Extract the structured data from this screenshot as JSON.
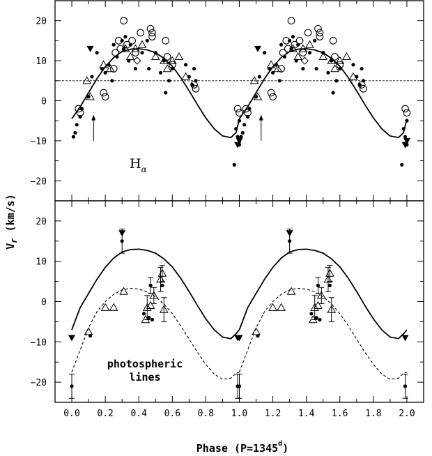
{
  "chart_data": [
    {
      "type": "scatter",
      "panel": "top",
      "annotation_main": "H",
      "annotation_sub": "α",
      "xlim": [
        -0.1,
        2.1
      ],
      "ylim": [
        -25,
        25
      ],
      "y_ticks": [
        "20",
        "10",
        "0",
        "−10",
        "−20"
      ],
      "y_tick_values": [
        20,
        10,
        0,
        -10,
        -20
      ],
      "reference_line_y": 5,
      "arrows_x": [
        0.13,
        1.13
      ],
      "curve": {
        "style": "solid",
        "x": [
          0.0,
          0.05,
          0.1,
          0.15,
          0.2,
          0.25,
          0.3,
          0.35,
          0.4,
          0.45,
          0.5,
          0.55,
          0.6,
          0.65,
          0.7,
          0.75,
          0.8,
          0.85,
          0.9,
          0.95,
          0.98,
          1.0
        ],
        "y": [
          -4.5,
          -1.5,
          2.0,
          5.5,
          8.5,
          10.8,
          12.3,
          12.9,
          13.0,
          12.7,
          12.0,
          10.6,
          8.6,
          5.8,
          2.5,
          -1.0,
          -4.3,
          -7.0,
          -8.8,
          -9.2,
          -8.0,
          -4.5
        ]
      },
      "series": [
        {
          "name": "",
          "marker": "dot",
          "x": [
            0.01,
            0.02,
            0.03,
            0.05,
            0.06,
            0.1,
            0.12,
            0.15,
            0.18,
            0.2,
            0.22,
            0.24,
            0.25,
            0.27,
            0.3,
            0.31,
            0.32,
            0.34,
            0.35,
            0.38,
            0.42,
            0.45,
            0.46,
            0.5,
            0.53,
            0.55,
            0.56,
            0.58,
            0.6,
            0.68,
            0.7,
            0.72,
            0.73,
            0.74,
            0.98,
            0.99,
            1.0,
            1.0,
            0.97
          ],
          "y": [
            -9,
            -8,
            -6,
            -4,
            -2,
            1,
            6,
            12,
            8,
            7,
            9,
            5,
            14,
            11,
            15,
            13,
            16,
            10,
            14,
            8,
            12,
            15,
            8,
            12,
            7,
            10,
            2,
            5,
            8,
            9,
            6,
            4,
            8,
            5,
            -7,
            -9,
            -5,
            -11,
            -16
          ]
        },
        {
          "name": "",
          "marker": "open-circle",
          "x": [
            0.04,
            0.05,
            0.19,
            0.2,
            0.25,
            0.26,
            0.28,
            0.29,
            0.31,
            0.33,
            0.36,
            0.38,
            0.41,
            0.47,
            0.48,
            0.48,
            0.56,
            0.57,
            0.6,
            0.74,
            0.73,
            0.99,
            1.0
          ],
          "y": [
            -2,
            -3,
            2,
            1,
            8,
            12,
            15,
            13,
            20,
            14,
            15,
            12,
            17,
            18,
            17,
            16,
            15,
            11,
            9,
            3,
            4,
            -2,
            -3
          ]
        },
        {
          "name": "",
          "marker": "open-triangle",
          "x": [
            0.09,
            0.11,
            0.19,
            0.23,
            0.32,
            0.35,
            0.38,
            0.42,
            0.5,
            0.55,
            0.57,
            0.6,
            0.64,
            0.68
          ],
          "y": [
            5,
            1,
            9,
            8,
            13,
            11,
            13,
            14,
            11,
            10,
            8,
            10,
            11,
            6
          ]
        },
        {
          "name": "",
          "marker": "filled-triangle",
          "x": [
            0.11,
            0.99,
            1.0
          ],
          "y": [
            13,
            -11,
            -10
          ]
        },
        {
          "name": "",
          "marker": "open-diamond",
          "x": [
            0.39
          ],
          "y": [
            10
          ]
        }
      ]
    },
    {
      "type": "scatter",
      "panel": "bottom",
      "annotation_line1": "photospheric",
      "annotation_line2": "lines",
      "xlim": [
        -0.1,
        2.1
      ],
      "ylim": [
        -25,
        25
      ],
      "y_ticks": [
        "20",
        "10",
        "0",
        "−10",
        "−20"
      ],
      "y_tick_values": [
        20,
        10,
        0,
        -10,
        -20
      ],
      "x_ticks": [
        "0.0",
        "0.2",
        "0.4",
        "0.6",
        "0.8",
        "1.0",
        "1.2",
        "1.4",
        "1.6",
        "1.8",
        "2.0"
      ],
      "x_tick_values": [
        0,
        0.2,
        0.4,
        0.6,
        0.8,
        1.0,
        1.2,
        1.4,
        1.6,
        1.8,
        2.0
      ],
      "xlabel_main": "Phase (P=1345",
      "xlabel_sup": "d",
      "xlabel_end": ")",
      "ylabel_main": "V",
      "ylabel_sub": "r",
      "ylabel_end": " (km/s)",
      "curves": [
        {
          "style": "solid",
          "x": [
            0.0,
            0.05,
            0.1,
            0.15,
            0.2,
            0.25,
            0.3,
            0.35,
            0.4,
            0.45,
            0.5,
            0.55,
            0.6,
            0.65,
            0.7,
            0.75,
            0.8,
            0.85,
            0.9,
            0.95,
            0.98,
            1.0
          ],
          "y": [
            -7,
            -1.5,
            2.0,
            5.5,
            8.5,
            10.8,
            12.3,
            12.9,
            13.0,
            12.7,
            12.0,
            10.6,
            8.6,
            5.8,
            2.5,
            -1.0,
            -4.3,
            -7.0,
            -8.8,
            -9.2,
            -8.0,
            -7
          ]
        },
        {
          "style": "dashed",
          "x": [
            0.0,
            0.05,
            0.1,
            0.15,
            0.2,
            0.25,
            0.3,
            0.35,
            0.4,
            0.45,
            0.5,
            0.55,
            0.6,
            0.65,
            0.7,
            0.75,
            0.8,
            0.85,
            0.9,
            0.95,
            0.98,
            1.0
          ],
          "y": [
            -17.5,
            -12,
            -6.5,
            -2.5,
            0,
            1.8,
            2.9,
            3.3,
            3.1,
            2.4,
            1.2,
            -0.6,
            -3.0,
            -6.0,
            -9.3,
            -12.6,
            -15.6,
            -18.0,
            -19.3,
            -19.0,
            -17.8,
            -17.5
          ]
        }
      ],
      "series": [
        {
          "name": "",
          "marker": "dot",
          "x": [
            0.0,
            0.11,
            0.3,
            0.43,
            0.46,
            0.47,
            0.48,
            0.54,
            0.99
          ],
          "y": [
            -21,
            -8.5,
            15,
            -3,
            -4,
            4,
            -4.5,
            4,
            -21
          ],
          "err": [
            3,
            0,
            3,
            0,
            0,
            2,
            0,
            0,
            3
          ]
        },
        {
          "name": "",
          "marker": "open-triangle",
          "x": [
            0.1,
            0.2,
            0.25,
            0.31,
            0.44,
            0.45,
            0.47,
            0.49,
            0.53,
            0.54,
            0.55
          ],
          "y": [
            -7.5,
            -1.5,
            -1.5,
            2.5,
            -4.5,
            -1.5,
            -1,
            1.5,
            5.5,
            7,
            -2
          ],
          "err": [
            0,
            0,
            0,
            0,
            0,
            3,
            0,
            2,
            3,
            2,
            3
          ]
        },
        {
          "name": "",
          "marker": "filled-triangle",
          "x": [
            0.0,
            0.3,
            0.99
          ],
          "y": [
            -9,
            17,
            -9
          ]
        }
      ]
    }
  ]
}
